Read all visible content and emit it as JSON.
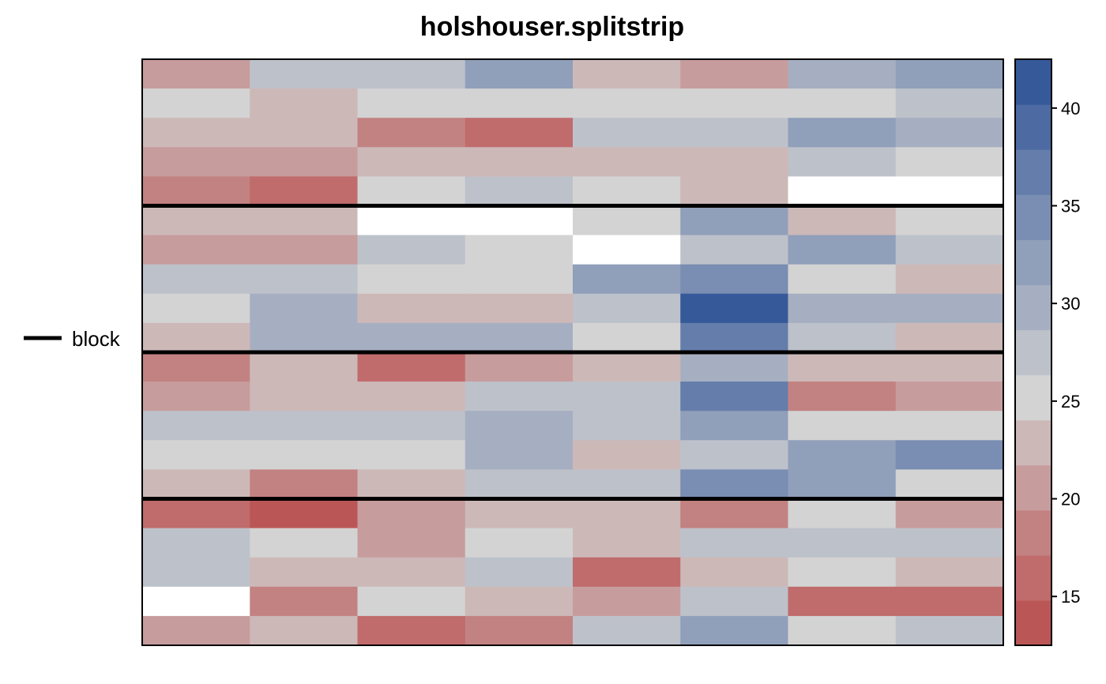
{
  "chart_data": {
    "type": "heatmap",
    "title": "holshouser.splitstrip",
    "legend": {
      "label": "block",
      "placement": "left"
    },
    "n_rows": 20,
    "n_cols": 8,
    "blocks": [
      {
        "rows": [
          1,
          5
        ]
      },
      {
        "rows": [
          6,
          10
        ]
      },
      {
        "rows": [
          11,
          15
        ]
      },
      {
        "rows": [
          16,
          20
        ]
      }
    ],
    "values": [
      [
        20,
        27,
        27,
        32,
        22,
        20,
        29,
        31
      ],
      [
        25,
        22,
        25,
        25,
        25,
        25,
        25,
        27
      ],
      [
        22,
        22,
        18,
        16,
        27,
        27,
        31,
        29
      ],
      [
        20,
        20,
        22,
        22,
        22,
        22,
        27,
        25
      ],
      [
        18,
        16,
        25,
        27,
        25,
        22,
        null,
        null
      ],
      [
        22,
        22,
        null,
        null,
        25,
        31,
        22,
        25
      ],
      [
        20,
        20,
        27,
        25,
        null,
        27,
        31,
        27
      ],
      [
        27,
        27,
        25,
        25,
        31,
        34,
        25,
        22
      ],
      [
        25,
        29,
        22,
        22,
        27,
        41,
        29,
        29
      ],
      [
        22,
        29,
        29,
        29,
        25,
        36,
        27,
        22
      ],
      [
        18,
        22,
        16,
        20,
        22,
        29,
        22,
        22
      ],
      [
        20,
        22,
        22,
        27,
        27,
        36,
        18,
        20
      ],
      [
        27,
        27,
        27,
        29,
        27,
        31,
        25,
        25
      ],
      [
        25,
        25,
        25,
        29,
        22,
        27,
        31,
        34
      ],
      [
        22,
        18,
        22,
        27,
        27,
        34,
        31,
        25
      ],
      [
        16,
        14,
        20,
        22,
        22,
        18,
        25,
        20
      ],
      [
        27,
        25,
        20,
        25,
        22,
        27,
        27,
        27
      ],
      [
        27,
        22,
        22,
        27,
        16,
        22,
        25,
        22
      ],
      [
        null,
        18,
        25,
        22,
        20,
        27,
        16,
        16
      ],
      [
        20,
        22,
        16,
        18,
        27,
        31,
        25,
        27
      ]
    ],
    "colorbar": {
      "min": 12.5,
      "max": 42.5,
      "ticks": [
        15,
        20,
        25,
        30,
        35,
        40
      ],
      "tick_labels": [
        "15",
        "20",
        "25",
        "30",
        "35",
        "40"
      ],
      "colors": [
        "#bb5657",
        "#c06b6c",
        "#c28281",
        "#c79c9d",
        "#cdb8b8",
        "#d3d3d3",
        "#bdc1ca",
        "#a6afc1",
        "#909fba",
        "#7a8db2",
        "#647daa",
        "#4d6ba2",
        "#36599a"
      ]
    },
    "missing_color": "#ffffff",
    "grid": false
  }
}
